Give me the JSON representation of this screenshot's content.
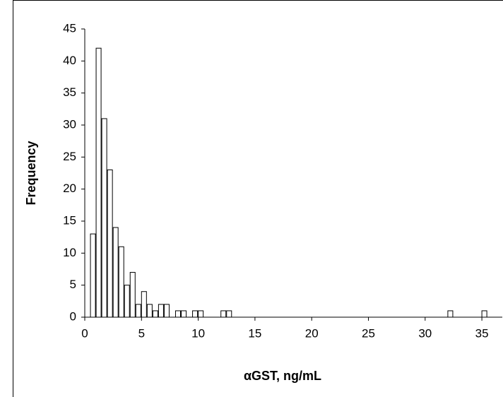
{
  "chart_data": {
    "type": "histogram",
    "xlabel": "αGST, ng/mL",
    "ylabel": "Frequency",
    "bins": [
      0.5,
      1,
      1.5,
      2,
      2.5,
      3,
      3.5,
      4,
      4.5,
      5,
      5.5,
      6,
      6.5,
      7,
      7.5,
      8,
      8.5,
      9,
      9.5,
      10,
      10.5,
      11,
      11.5,
      12,
      12.5,
      13,
      13.5,
      14,
      14.5,
      15,
      15.5,
      16,
      16.5,
      17,
      17.5,
      18,
      18.5,
      19,
      19.5,
      20,
      20.5,
      21,
      21.5,
      22,
      22.5,
      23,
      23.5,
      24,
      24.5,
      25,
      25.5,
      26,
      26.5,
      27,
      27.5,
      28,
      28.5,
      29,
      29.5,
      30,
      30.5,
      31,
      31.5,
      32,
      32.5,
      33,
      33.5,
      34,
      34.5,
      35,
      35.5
    ],
    "values": [
      13,
      42,
      31,
      23,
      14,
      11,
      5,
      7,
      2,
      4,
      2,
      1,
      2,
      2,
      0,
      1,
      1,
      0,
      1,
      1,
      0,
      0,
      0,
      1,
      1,
      0,
      0,
      0,
      0,
      0,
      0,
      0,
      0,
      0,
      0,
      0,
      0,
      0,
      0,
      0,
      0,
      0,
      0,
      0,
      0,
      0,
      0,
      0,
      0,
      0,
      0,
      0,
      0,
      0,
      0,
      0,
      0,
      0,
      0,
      0,
      0,
      0,
      0,
      1,
      0,
      0,
      0,
      0,
      0,
      1
    ],
    "color": "#ffffff",
    "xlim": [
      0,
      36.8
    ],
    "ylim": [
      0,
      45
    ],
    "xticks": [
      0,
      5,
      10,
      15,
      20,
      25,
      30,
      35
    ],
    "yticks": [
      0,
      5,
      10,
      15,
      20,
      25,
      30,
      35,
      40,
      45
    ]
  }
}
